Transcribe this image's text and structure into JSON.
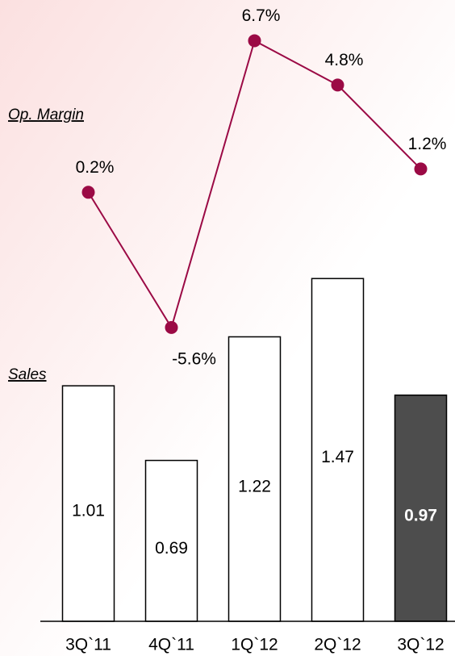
{
  "chart_data": {
    "type": "bar",
    "categories": [
      "3Q`11",
      "4Q`11",
      "1Q`12",
      "2Q`12",
      "3Q`12"
    ],
    "series": [
      {
        "name": "Sales",
        "type": "bar",
        "values": [
          1.01,
          0.69,
          1.22,
          1.47,
          0.97
        ],
        "colors": [
          "#ffffff",
          "#ffffff",
          "#ffffff",
          "#ffffff",
          "#4d4d4d"
        ]
      },
      {
        "name": "Op. Margin",
        "type": "line",
        "axis": "y2",
        "color": "#9b0a45",
        "values": [
          0.2,
          -5.6,
          6.7,
          4.8,
          1.2
        ],
        "value_labels": [
          "0.2%",
          "-5.6%",
          "6.7%",
          "4.8%",
          "1.2%"
        ]
      }
    ],
    "ylim": [
      0,
      2.63
    ],
    "y2lim": [
      -18.2,
      8.1
    ]
  }
}
